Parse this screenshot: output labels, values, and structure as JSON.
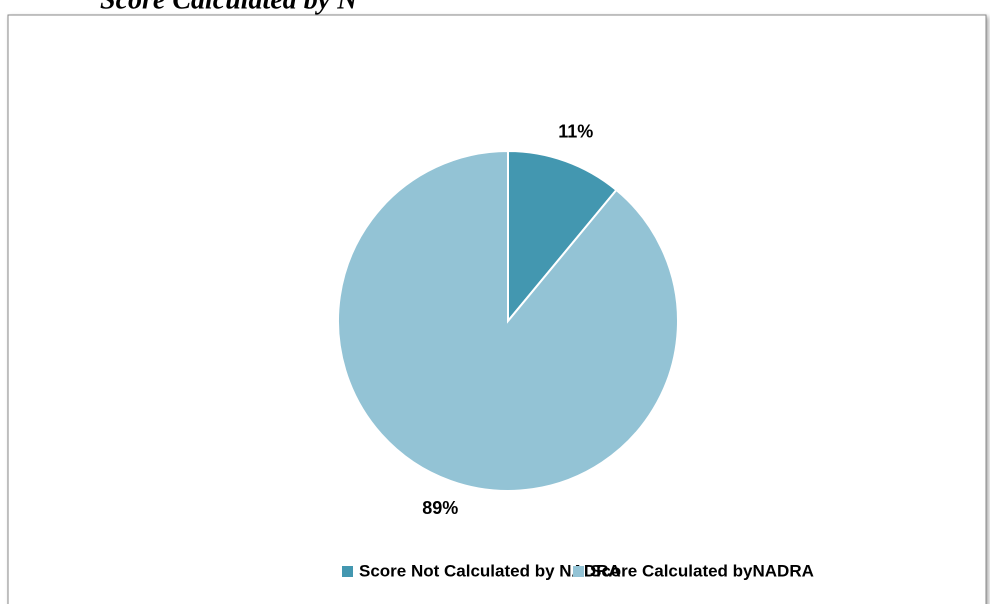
{
  "chart_data": {
    "type": "pie",
    "title": "Score Calculated by N",
    "categories": [
      "Score Not Calculated by NADRA",
      "Score Calculated byNADRA"
    ],
    "values": [
      11,
      89
    ],
    "value_labels": [
      "11%",
      "89%"
    ],
    "colors": [
      "#4397b0",
      "#93c3d5"
    ],
    "legend": "bottom"
  }
}
